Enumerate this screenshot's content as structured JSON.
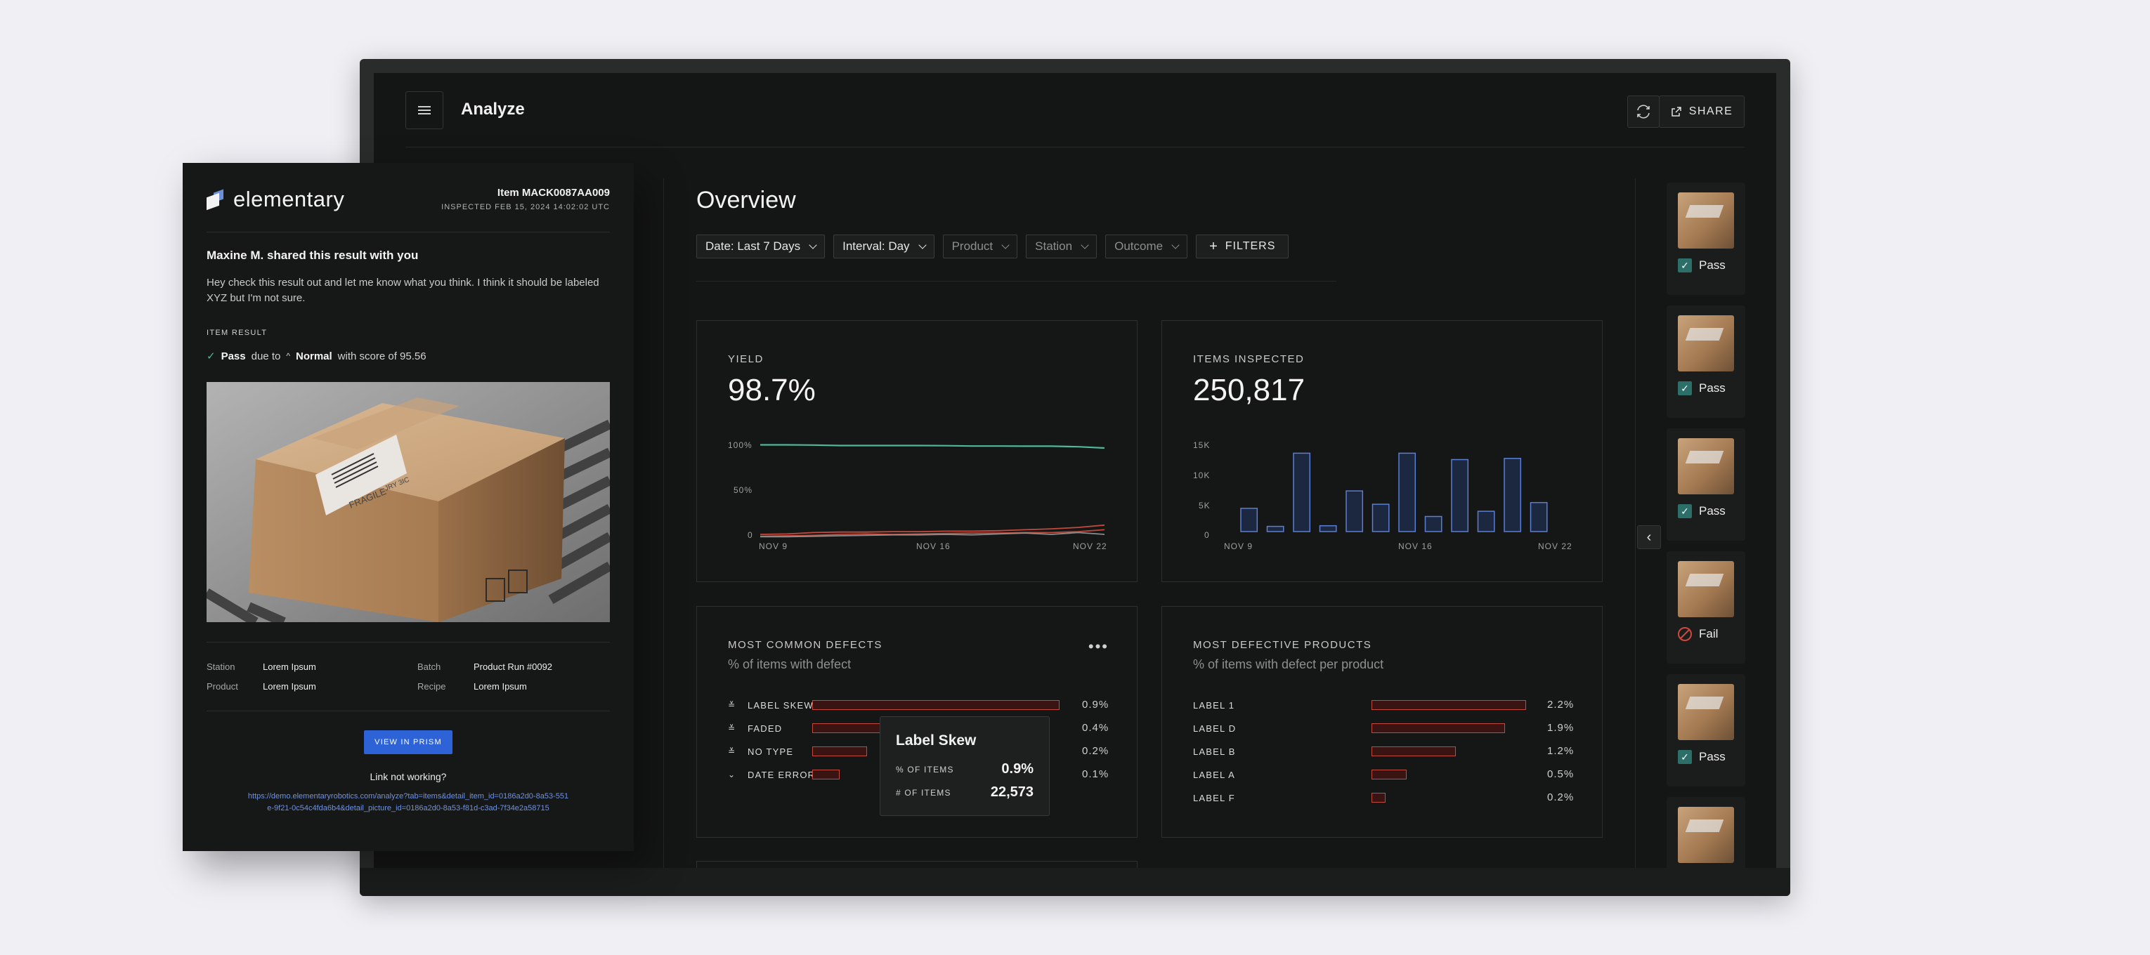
{
  "dashboard": {
    "title": "Analyze",
    "share_label": "SHARE",
    "overview_title": "Overview",
    "filters": [
      {
        "label": "Date: Last 7 Days",
        "active": true
      },
      {
        "label": "Interval: Day",
        "active": true
      },
      {
        "label": "Product",
        "active": false
      },
      {
        "label": "Station",
        "active": false
      },
      {
        "label": "Outcome",
        "active": false
      }
    ],
    "filters_button": "FILTERS",
    "colors": {
      "background": "#141515",
      "accent_green": "#4fb79a",
      "accent_red": "#c24a3c",
      "accent_blue": "#5b7fd3",
      "link_blue": "#2e63d8"
    }
  },
  "cards": {
    "yield": {
      "label": "YIELD",
      "value": "98.7%"
    },
    "items_inspected": {
      "label": "ITEMS INSPECTED",
      "value": "250,817"
    },
    "defects": {
      "label": "MOST COMMON DEFECTS",
      "sub": "% of items with defect"
    },
    "products": {
      "label": "MOST DEFECTIVE PRODUCTS",
      "sub": "% of items with defect per product"
    }
  },
  "chart_data": [
    {
      "type": "line",
      "x_ticks": [
        "NOV 9",
        "NOV 16",
        "NOV 22"
      ],
      "y_ticks": [
        "100%",
        "50%",
        "0"
      ],
      "ylim": [
        0,
        100
      ],
      "series": [
        {
          "color": "#4fb79a",
          "values": [
            99.6,
            99.6,
            99.4,
            98.9,
            98.9,
            98.9,
            98.9,
            98.7,
            98.3,
            98.3,
            98.2,
            98.2,
            97.6,
            96.2
          ]
        },
        {
          "color": "#c24a3c",
          "values": [
            3.0,
            3.5,
            5.0,
            5.5,
            5.5,
            6.0,
            6.0,
            6.5,
            6.5,
            7.0,
            8.0,
            9.0,
            10.5,
            13.0
          ]
        },
        {
          "color": "#c24a3c",
          "values": [
            1.0,
            1.5,
            2.0,
            3.0,
            3.5,
            3.0,
            3.5,
            4.0,
            4.5,
            4.5,
            5.0,
            5.0,
            6.0,
            8.0
          ]
        },
        {
          "color": "#8a8d8d",
          "values": [
            0.5,
            0.5,
            1.0,
            1.5,
            2.0,
            2.5,
            2.5,
            3.0,
            2.5,
            3.5,
            4.5,
            3.0,
            5.0,
            3.0
          ]
        }
      ]
    },
    {
      "type": "bar",
      "x_ticks": [
        "NOV 9",
        "NOV 16",
        "NOV 22"
      ],
      "y_ticks": [
        "15K",
        "10K",
        "5K",
        "0"
      ],
      "ylim": [
        0,
        15000
      ],
      "values": [
        4000,
        900,
        13500,
        1000,
        7000,
        4700,
        13500,
        2600,
        12400,
        3500,
        12600,
        5000
      ],
      "color": "#5b7fd3"
    },
    {
      "type": "bar",
      "orientation": "horizontal",
      "categories": [
        "LABEL SKEW",
        "FADED",
        "NO TYPE",
        "DATE ERROR"
      ],
      "values": [
        0.9,
        0.4,
        0.2,
        0.1
      ],
      "value_labels": [
        "0.9%",
        "0.4%",
        "0.2%",
        "0.1%"
      ],
      "xlim": [
        0,
        0.9
      ]
    },
    {
      "type": "bar",
      "orientation": "horizontal",
      "categories": [
        "LABEL 1",
        "LABEL D",
        "LABEL B",
        "LABEL A",
        "LABEL F"
      ],
      "values": [
        2.2,
        1.9,
        1.2,
        0.5,
        0.2
      ],
      "value_labels": [
        "2.2%",
        "1.9%",
        "1.2%",
        "0.5%",
        "0.2%"
      ],
      "xlim": [
        0,
        2.2
      ]
    }
  ],
  "tooltip": {
    "title": "Label Skew",
    "rows": [
      {
        "key": "% OF ITEMS",
        "value": "0.9%"
      },
      {
        "key": "# OF ITEMS",
        "value": "22,573"
      }
    ]
  },
  "thumbnails": [
    {
      "status": "Pass"
    },
    {
      "status": "Pass"
    },
    {
      "status": "Pass"
    },
    {
      "status": "Fail"
    },
    {
      "status": "Pass"
    },
    {
      "status": ""
    }
  ],
  "email": {
    "brand": "elementary",
    "item_id": "Item MACK0087AA009",
    "inspected": "INSPECTED FEB 15, 2024 14:02:02 UTC",
    "shared_line": "Maxine M. shared this result with you",
    "message": "Hey check this result out and let me know what you think. I think it should be labeled XYZ but I'm not sure.",
    "item_result_label": "ITEM RESULT",
    "result": {
      "outcome": "Pass",
      "due_to": "due to",
      "class": "Normal",
      "score_text": "with score of 95.56"
    },
    "photo_text": {
      "label": "FRAGILE",
      "code": "JRY 3IC"
    },
    "meta": {
      "station_k": "Station",
      "station_v": "Lorem Ipsum",
      "batch_k": "Batch",
      "batch_v": "Product Run #0092",
      "product_k": "Product",
      "product_v": "Lorem Ipsum",
      "recipe_k": "Recipe",
      "recipe_v": "Lorem Ipsum"
    },
    "view_button": "VIEW IN PRISM",
    "link_not_working": "Link not working?",
    "url": "https://demo.elementaryrobotics.com/analyze?tab=items&detail_item_id=0186a2d0-8a53-551e-9f21-0c54c4fda6b4&detail_picture_id=0186a2d0-8a53-f81d-c3ad-7f34e2a58715"
  }
}
